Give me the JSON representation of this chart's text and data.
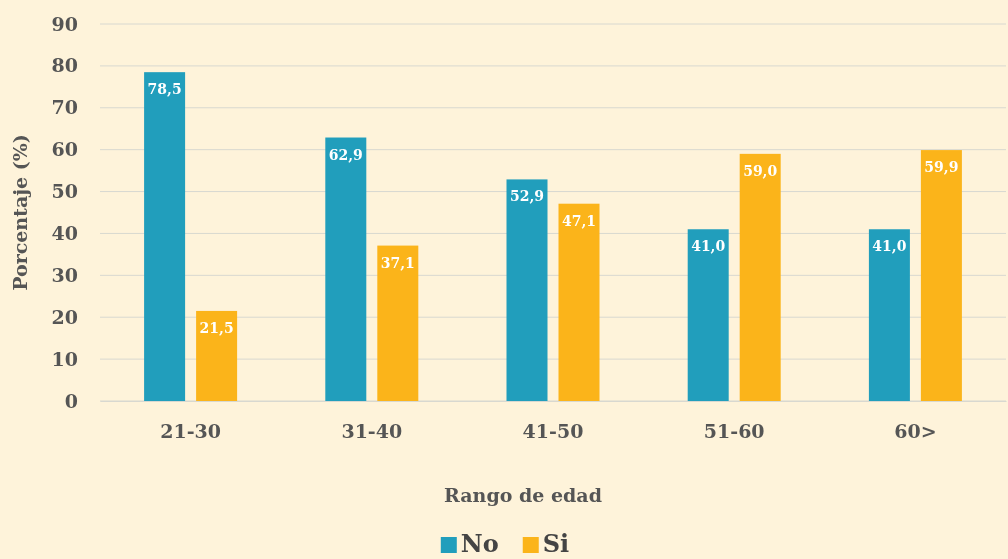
{
  "chart_data": {
    "type": "bar",
    "xlabel": "Rango de edad",
    "ylabel": "Porcentaje (%)",
    "categories": [
      "21-30",
      "31-40",
      "41-50",
      "51-60",
      "60>"
    ],
    "series": [
      {
        "name": "No",
        "color": "#219ebc",
        "values": [
          78.5,
          62.9,
          52.9,
          41.0,
          41.0
        ],
        "value_labels": [
          "78,5",
          "62,9",
          "52,9",
          "41,0",
          "41,0"
        ]
      },
      {
        "name": "Si",
        "color": "#fbb41a",
        "values": [
          21.5,
          37.1,
          47.1,
          59.0,
          59.9
        ],
        "value_labels": [
          "21,5",
          "37,1",
          "47,1",
          "59,0",
          "59,9"
        ]
      }
    ],
    "ylim": [
      0,
      90
    ],
    "yticks": [
      0,
      10,
      20,
      30,
      40,
      50,
      60,
      70,
      80,
      90
    ],
    "grid": "y",
    "legend": "bottom"
  }
}
